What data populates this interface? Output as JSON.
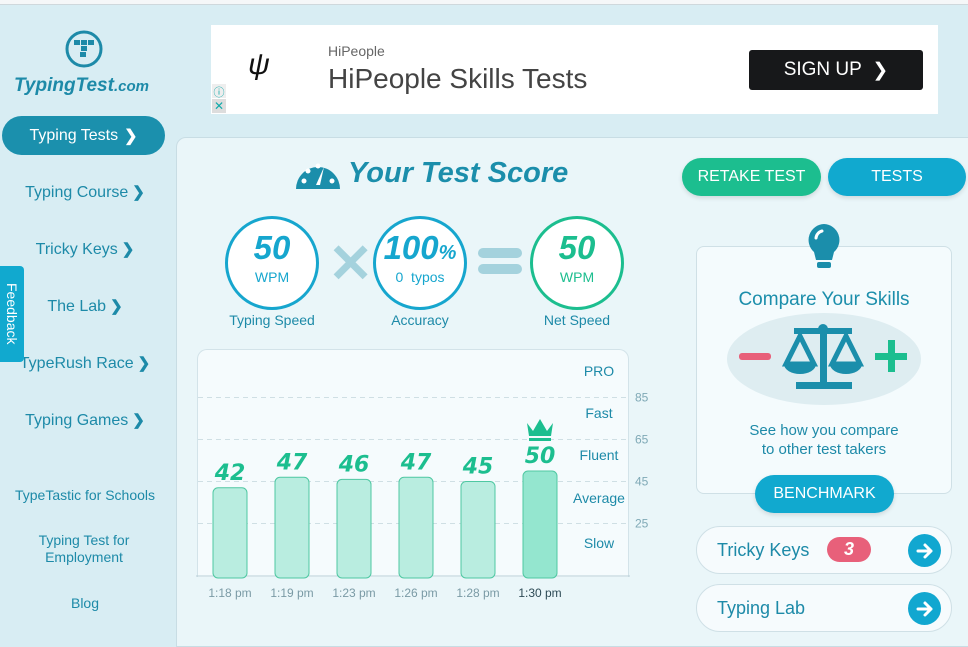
{
  "sidebar": {
    "logo": "TypingTest",
    "logo_suffix": ".com",
    "active": "Typing Tests",
    "items": [
      "Typing Course",
      "Tricky Keys",
      "The Lab",
      "TypeRush Race",
      "Typing Games"
    ],
    "links": [
      "TypeTastic for Schools",
      "Typing Test for Employment",
      "Blog"
    ],
    "feedback": "Feedback"
  },
  "ad": {
    "brand": "HiPeople",
    "title": "HiPeople Skills Tests",
    "cta": "SIGN UP"
  },
  "score": {
    "title": "Your Test Score",
    "speed": {
      "value": "50",
      "unit": "WPM",
      "label": "Typing Speed"
    },
    "accuracy": {
      "value": "100",
      "unit": "%",
      "sub": "0  typos",
      "label": "Accuracy"
    },
    "net": {
      "value": "50",
      "unit": "WPM",
      "label": "Net Speed"
    }
  },
  "actions": {
    "retake": "RETAKE TEST",
    "tests": "TESTS"
  },
  "compare": {
    "title": "Compare Your Skills",
    "text1": "See how you compare",
    "text2": "to other test takers",
    "button": "BENCHMARK"
  },
  "links": {
    "tricky": "Tricky Keys",
    "tricky_count": "3",
    "lab": "Typing Lab"
  },
  "colors": {
    "primary": "#16a6ce",
    "green": "#1cbe8f",
    "dark": "#1b8eab",
    "pink": "#e8607a"
  },
  "chart_data": {
    "type": "bar",
    "categories": [
      "1:18 pm",
      "1:19 pm",
      "1:23 pm",
      "1:26 pm",
      "1:28 pm",
      "1:30 pm"
    ],
    "values": [
      42,
      47,
      46,
      47,
      45,
      50
    ],
    "highlight": "1:30 pm",
    "ylim": [
      0,
      105
    ],
    "yticks": [
      25,
      45,
      65,
      85
    ],
    "bands": [
      "Slow",
      "Average",
      "Fluent",
      "Fast",
      "PRO"
    ],
    "grid": true
  }
}
